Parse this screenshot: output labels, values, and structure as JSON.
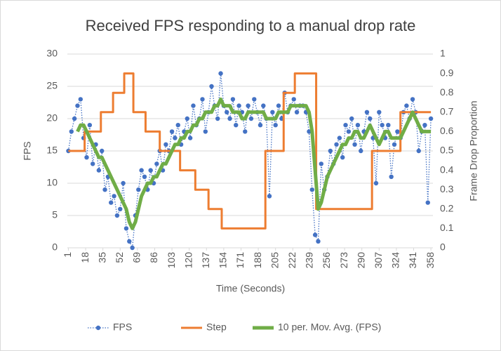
{
  "chart_data": {
    "type": "line",
    "title": "Received FPS responding to a manual drop rate",
    "x_label": "Time (Seconds)",
    "y_label": "FPS",
    "y2_label": "Frame Drop Proportion",
    "x": [
      1,
      4,
      7,
      10,
      13,
      16,
      19,
      22,
      25,
      28,
      31,
      34,
      37,
      40,
      43,
      46,
      49,
      52,
      55,
      58,
      61,
      64,
      67,
      70,
      73,
      76,
      79,
      82,
      85,
      88,
      91,
      94,
      97,
      100,
      103,
      106,
      109,
      112,
      115,
      118,
      121,
      124,
      127,
      130,
      133,
      136,
      139,
      142,
      145,
      148,
      151,
      154,
      157,
      160,
      163,
      166,
      169,
      172,
      175,
      178,
      181,
      184,
      187,
      190,
      193,
      196,
      199,
      202,
      205,
      208,
      211,
      214,
      217,
      220,
      223,
      226,
      229,
      232,
      235,
      238,
      241,
      244,
      247,
      250,
      253,
      256,
      259,
      262,
      265,
      268,
      271,
      274,
      277,
      280,
      283,
      286,
      289,
      292,
      295,
      298,
      301,
      304,
      307,
      310,
      313,
      316,
      319,
      322,
      325,
      328,
      331,
      334,
      337,
      340,
      343,
      346,
      349,
      352,
      355,
      358
    ],
    "xlim": [
      0,
      360
    ],
    "xticks": [
      1,
      18,
      35,
      52,
      69,
      86,
      103,
      120,
      137,
      154,
      171,
      188,
      205,
      222,
      239,
      256,
      273,
      290,
      307,
      324,
      341,
      358
    ],
    "ylim": [
      0,
      30
    ],
    "yticks": [
      0,
      5,
      10,
      15,
      20,
      25,
      30
    ],
    "y2lim": [
      0,
      1
    ],
    "y2ticks": [
      0,
      0.1,
      0.2,
      0.3,
      0.4,
      0.5,
      0.6,
      0.7,
      0.8,
      0.9,
      1
    ],
    "grid": true,
    "legend": "bottom",
    "series": [
      {
        "name": "FPS",
        "color": "#4472c4",
        "style": "dotted-markers",
        "values": [
          15,
          18,
          20,
          22,
          23,
          17,
          14,
          19,
          13,
          16,
          12,
          15,
          9,
          11,
          7,
          8,
          5,
          6,
          10,
          3,
          1,
          0,
          5,
          9,
          12,
          11,
          9,
          12,
          10,
          13,
          15,
          12,
          16,
          15,
          18,
          17,
          19,
          16,
          18,
          20,
          17,
          22,
          19,
          20,
          23,
          18,
          21,
          25,
          22,
          20,
          27,
          22,
          21,
          20,
          23,
          19,
          22,
          21,
          18,
          22,
          20,
          23,
          21,
          19,
          22,
          20,
          8,
          21,
          19,
          22,
          20,
          24,
          21,
          22,
          23,
          21,
          22,
          22,
          21,
          18,
          9,
          2,
          1,
          13,
          9,
          11,
          15,
          13,
          16,
          17,
          14,
          19,
          18,
          20,
          16,
          19,
          15,
          18,
          21,
          20,
          17,
          10,
          21,
          19,
          17,
          19,
          11,
          16,
          18,
          17,
          21,
          22,
          20,
          23,
          21,
          15,
          18,
          19,
          7,
          20
        ]
      },
      {
        "name": "Step",
        "color": "#ed7d31",
        "style": "step",
        "axis": "y2",
        "x": [
          1,
          17,
          17,
          33,
          33,
          45,
          45,
          56,
          56,
          65,
          65,
          77,
          77,
          91,
          91,
          111,
          111,
          126,
          126,
          139,
          139,
          152,
          152,
          195,
          195,
          213,
          213,
          224,
          224,
          245,
          245,
          300,
          300,
          328,
          328,
          358
        ],
        "values": [
          0.5,
          0.5,
          0.6,
          0.6,
          0.7,
          0.7,
          0.8,
          0.8,
          0.9,
          0.9,
          0.7,
          0.7,
          0.6,
          0.6,
          0.5,
          0.5,
          0.4,
          0.4,
          0.3,
          0.3,
          0.2,
          0.2,
          0.1,
          0.1,
          0.5,
          0.5,
          0.8,
          0.8,
          0.9,
          0.9,
          0.2,
          0.2,
          0.5,
          0.5,
          0.7,
          0.7
        ]
      },
      {
        "name": "10 per. Mov. Avg. (FPS)",
        "color": "#70ad47",
        "style": "thick",
        "values": [
          null,
          null,
          null,
          18,
          19,
          19,
          18,
          17,
          16,
          15,
          14,
          14,
          13,
          12,
          11,
          10,
          9,
          8,
          7,
          6,
          4,
          3,
          4,
          6,
          8,
          9,
          10,
          10,
          11,
          11,
          12,
          13,
          13,
          14,
          15,
          16,
          16,
          17,
          17,
          18,
          18,
          19,
          19,
          20,
          20,
          21,
          21,
          21,
          22,
          22,
          23,
          22,
          22,
          22,
          21,
          21,
          21,
          20,
          20,
          21,
          21,
          21,
          21,
          21,
          21,
          20,
          20,
          20,
          20,
          21,
          21,
          21,
          21,
          22,
          22,
          22,
          22,
          22,
          22,
          21,
          18,
          12,
          6,
          7,
          9,
          11,
          12,
          13,
          14,
          15,
          16,
          16,
          17,
          17,
          18,
          18,
          17,
          17,
          18,
          19,
          18,
          17,
          16,
          17,
          18,
          18,
          17,
          17,
          17,
          17,
          18,
          19,
          20,
          21,
          20,
          19,
          18,
          18,
          18,
          18
        ]
      }
    ]
  }
}
